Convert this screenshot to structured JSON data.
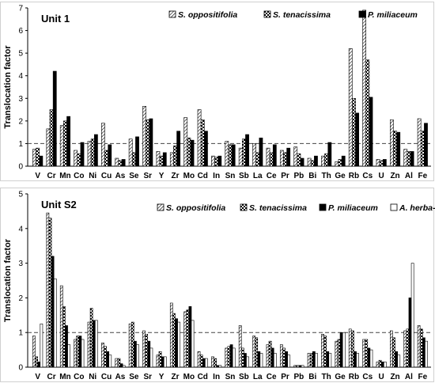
{
  "chart_data": [
    {
      "type": "bar",
      "title": "Unit 1",
      "ylabel": "Translocation factor",
      "ylim": [
        0,
        7
      ],
      "yticks": [
        0,
        1,
        2,
        3,
        4,
        5,
        6,
        7
      ],
      "reference_line": 1,
      "grid": false,
      "legend_position": "top",
      "categories": [
        "V",
        "Cr",
        "Mn",
        "Co",
        "Ni",
        "Cu",
        "As",
        "Se",
        "Sr",
        "Y",
        "Zr",
        "Mo",
        "Cd",
        "In",
        "Sn",
        "Sb",
        "La",
        "Ce",
        "Pr",
        "Pb",
        "Bi",
        "Th",
        "Ge",
        "Rb",
        "Cs",
        "U",
        "Zn",
        "Al",
        "Fe"
      ],
      "series": [
        {
          "name": "S. oppositifolia",
          "pattern": "diagonal",
          "values": [
            0.75,
            1.65,
            1.8,
            0.7,
            1.1,
            1.9,
            0.35,
            1.2,
            2.65,
            0.65,
            0.6,
            2.15,
            2.5,
            0.45,
            1.1,
            0.8,
            1.0,
            0.8,
            0.7,
            0.85,
            0.35,
            0.45,
            0.2,
            5.2,
            6.9,
            0.3,
            2.05,
            0.75,
            2.1
          ]
        },
        {
          "name": "S. tenacissima",
          "pattern": "checker",
          "values": [
            0.8,
            2.5,
            2.0,
            0.55,
            1.2,
            0.7,
            0.25,
            0.6,
            2.05,
            0.45,
            0.9,
            1.25,
            2.05,
            0.4,
            0.95,
            1.2,
            0.6,
            0.6,
            0.6,
            0.55,
            0.25,
            0.55,
            0.3,
            3.0,
            4.7,
            0.25,
            1.55,
            0.65,
            1.55
          ]
        },
        {
          "name": "P. miliaceum",
          "pattern": "solid",
          "values": [
            0.45,
            4.2,
            2.2,
            1.05,
            1.4,
            0.95,
            0.3,
            1.3,
            2.1,
            0.6,
            1.55,
            1.15,
            1.55,
            0.45,
            0.95,
            1.4,
            1.25,
            0.95,
            0.8,
            0.35,
            0.45,
            1.05,
            0.45,
            2.35,
            3.05,
            0.3,
            1.5,
            0.65,
            1.9
          ]
        }
      ]
    },
    {
      "type": "bar",
      "title": "Unit S2",
      "ylabel": "Translocation factor",
      "ylim": [
        0,
        5
      ],
      "yticks": [
        0,
        1,
        2,
        3,
        4,
        5
      ],
      "reference_line": 1,
      "grid": false,
      "legend_position": "top",
      "categories": [
        "V",
        "Cr",
        "Mn",
        "Co",
        "Ni",
        "Cu",
        "As",
        "Se",
        "Sr",
        "Y",
        "Zr",
        "Mo",
        "Cd",
        "In",
        "Sn",
        "Sb",
        "La",
        "Ce",
        "Pr",
        "Pb",
        "Bi",
        "Th",
        "Ge",
        "Rb",
        "Cs",
        "U",
        "Zn",
        "Al",
        "Fe"
      ],
      "series": [
        {
          "name": "S. oppositifolia",
          "pattern": "diagonal",
          "values": [
            0.9,
            4.45,
            2.35,
            0.8,
            1.3,
            0.7,
            0.25,
            1.25,
            1.05,
            0.35,
            1.85,
            1.6,
            0.45,
            0.3,
            0.55,
            1.2,
            0.9,
            0.65,
            0.65,
            0.05,
            0.4,
            0.95,
            0.75,
            1.1,
            0.8,
            0.15,
            1.05,
            1.05,
            1.2
          ]
        },
        {
          "name": "S. tenacissima",
          "pattern": "checker",
          "values": [
            0.3,
            4.3,
            1.75,
            0.9,
            1.7,
            0.6,
            0.25,
            1.3,
            0.95,
            0.45,
            1.55,
            1.65,
            0.35,
            0.25,
            0.6,
            0.55,
            0.85,
            0.75,
            0.55,
            0.05,
            0.4,
            0.9,
            0.8,
            1.05,
            0.8,
            0.2,
            0.85,
            1.1,
            1.1
          ]
        },
        {
          "name": "P. miliaceum",
          "pattern": "solid",
          "values": [
            0.15,
            3.2,
            1.2,
            0.9,
            1.35,
            0.45,
            0.1,
            0.75,
            0.75,
            0.3,
            1.4,
            1.75,
            0.25,
            0.05,
            0.65,
            0.4,
            0.45,
            0.55,
            0.45,
            0.05,
            0.45,
            0.45,
            1.0,
            0.45,
            0.55,
            0.15,
            0.45,
            2.0,
            0.85
          ]
        },
        {
          "name": "A. herba-alba",
          "pattern": "open",
          "values": [
            1.25,
            2.55,
            0.65,
            0.8,
            1.35,
            0.35,
            0.05,
            0.65,
            0.55,
            0.3,
            1.3,
            1.35,
            0.25,
            0.05,
            0.55,
            0.3,
            0.4,
            0.4,
            0.35,
            0.05,
            0.4,
            0.4,
            1.0,
            0.4,
            0.5,
            0.15,
            0.35,
            3.0,
            0.75
          ]
        }
      ]
    }
  ]
}
